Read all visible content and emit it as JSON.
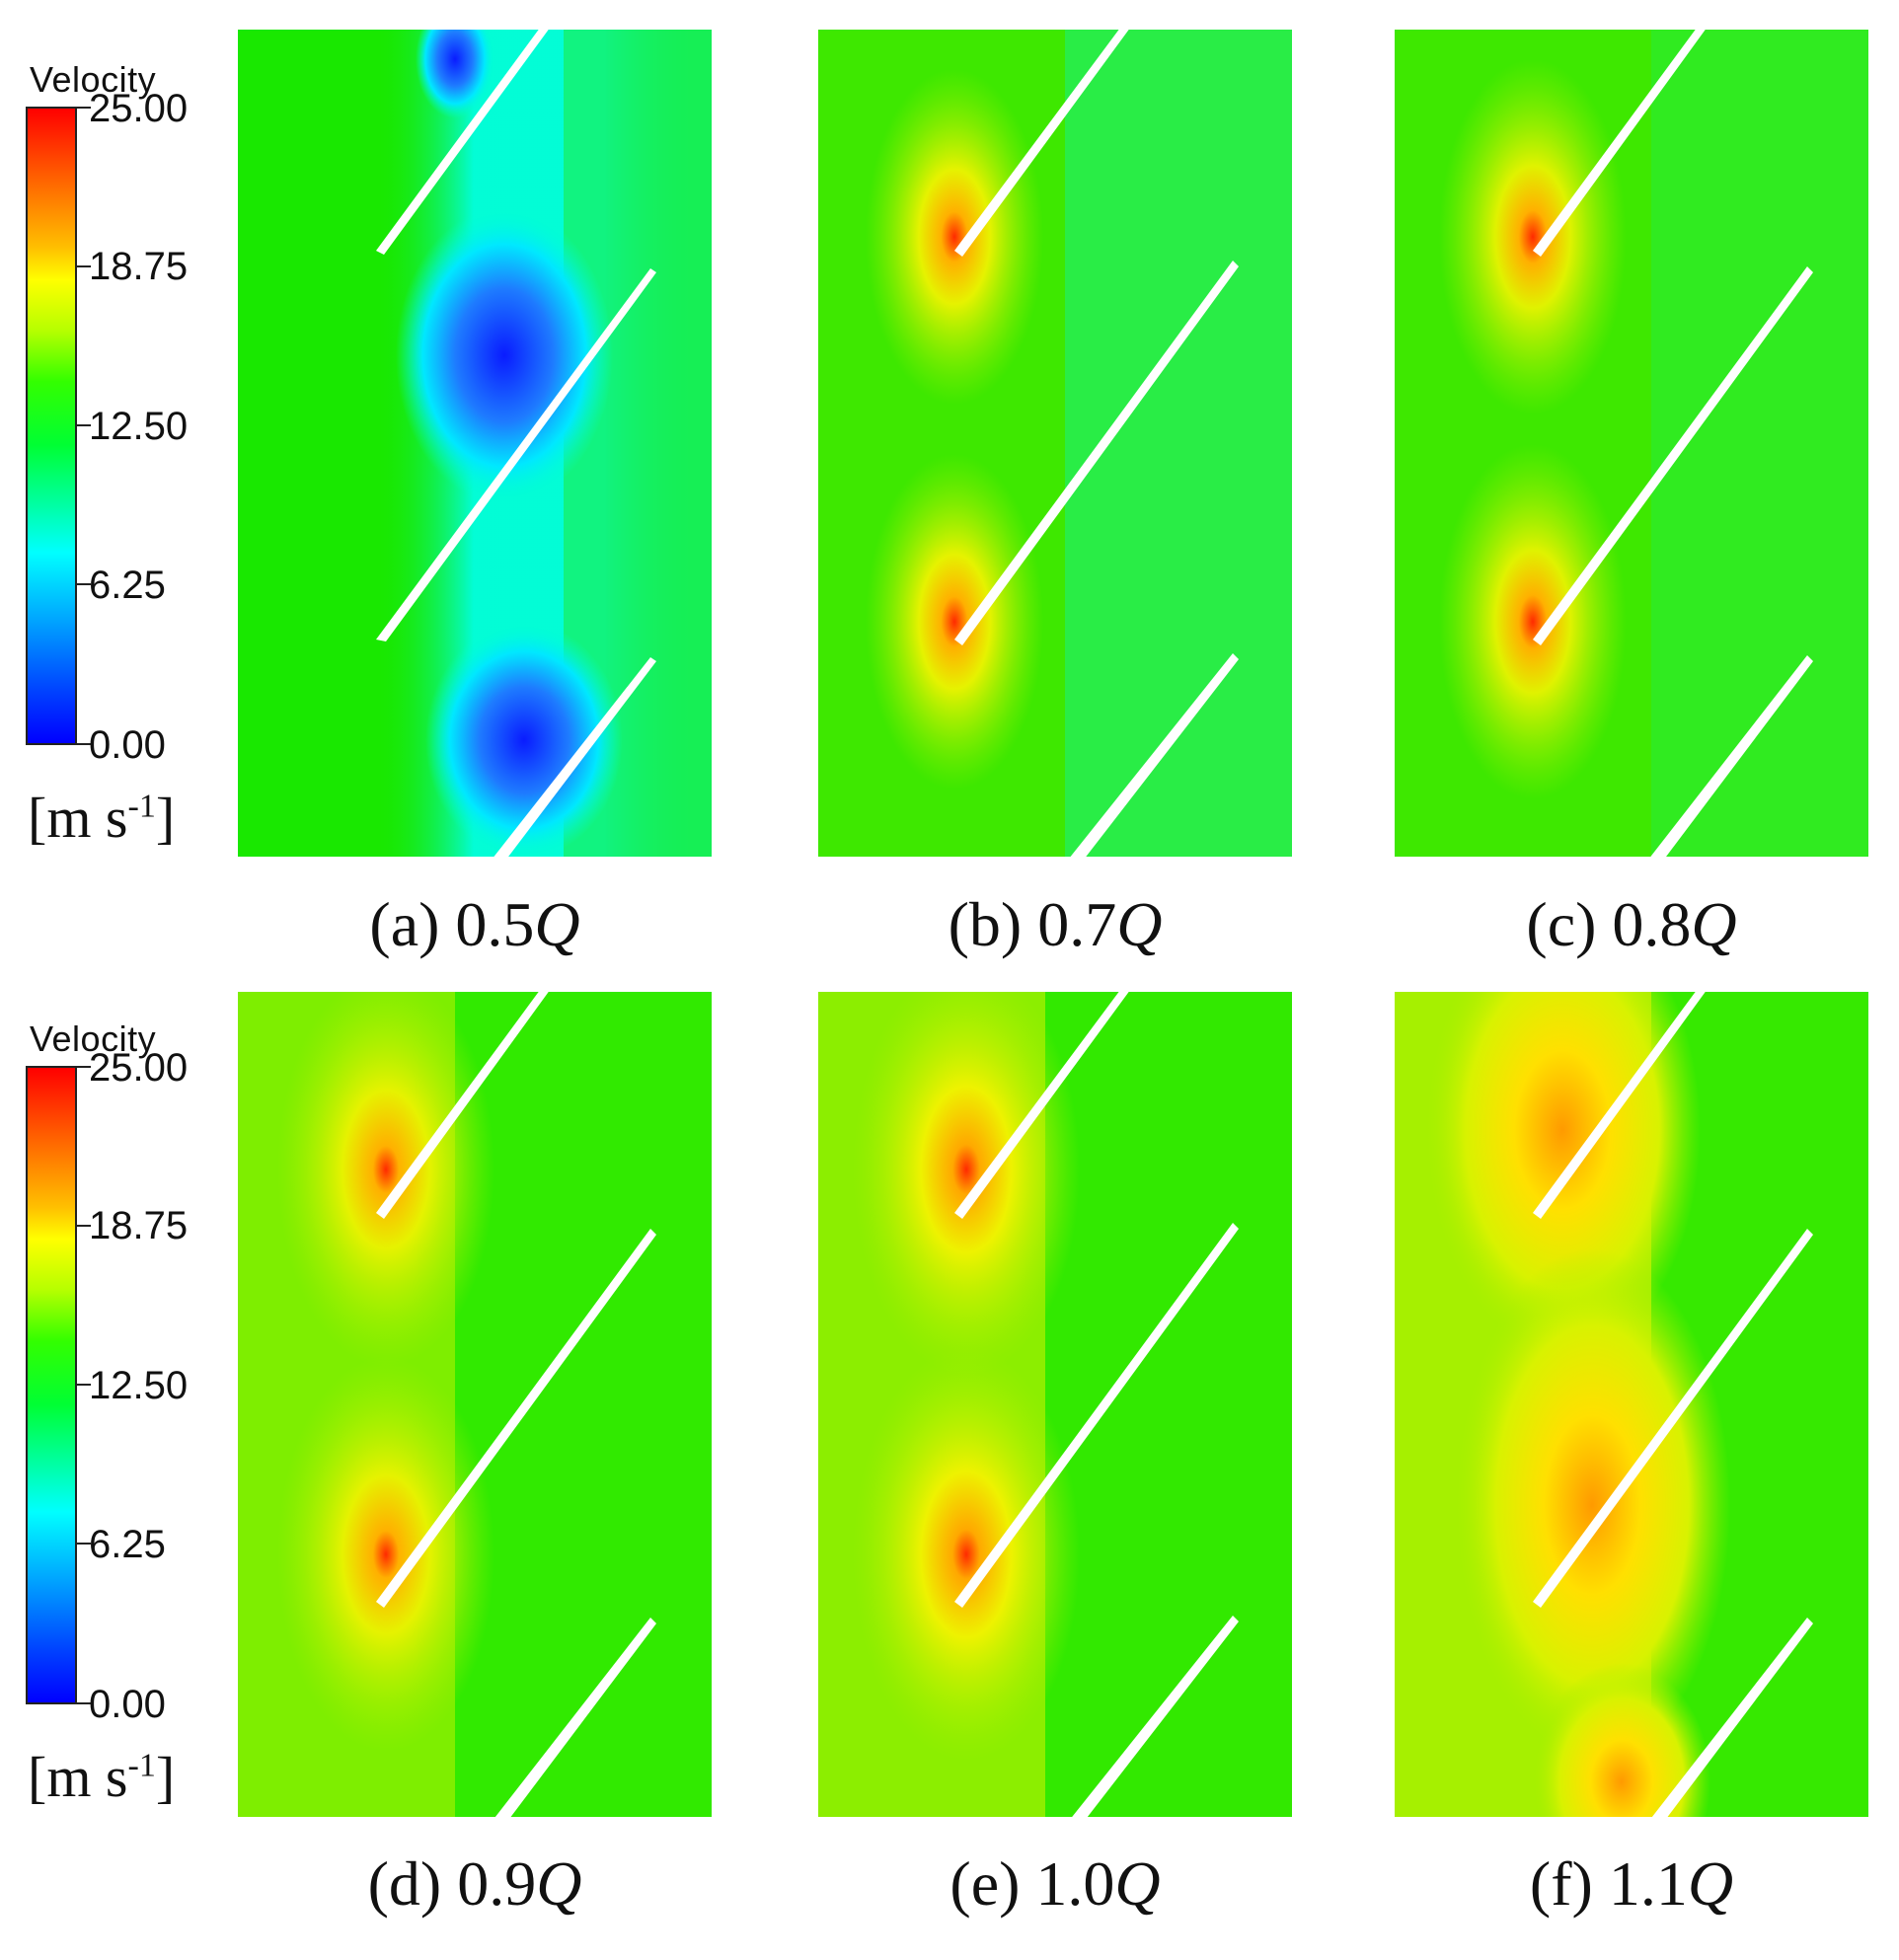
{
  "legend": {
    "title": "Velocity",
    "ticks": [
      "25.00",
      "18.75",
      "12.50",
      "6.25",
      "0.00"
    ],
    "unit_base": "[m s",
    "unit_exp": "-1",
    "unit_close": "]",
    "range": [
      0,
      25
    ],
    "colormap": [
      "#0000ff",
      "#00aaff",
      "#00ffff",
      "#00ffaa",
      "#00ff33",
      "#33ff00",
      "#b6ff00",
      "#ffff00",
      "#ffc000",
      "#ff6a00",
      "#ff0000"
    ]
  },
  "panels": [
    {
      "id": "a",
      "prefix": "(a) ",
      "value": "0.5",
      "q": "Q"
    },
    {
      "id": "b",
      "prefix": "(b) ",
      "value": "0.7",
      "q": "Q"
    },
    {
      "id": "c",
      "prefix": "(c) ",
      "value": "0.8",
      "q": "Q"
    },
    {
      "id": "d",
      "prefix": "(d) ",
      "value": "0.9",
      "q": "Q"
    },
    {
      "id": "e",
      "prefix": "(e) ",
      "value": "1.0",
      "q": "Q"
    },
    {
      "id": "f",
      "prefix": "(f) ",
      "value": "1.1",
      "q": "Q"
    }
  ],
  "colors": {
    "green": "#19e800",
    "blue_low": "#0a2bff",
    "cyan": "#00ffee",
    "teal": "#12f08a",
    "yellow": "#e6f200",
    "orange": "#ff9a00",
    "red": "#ff1a00"
  }
}
